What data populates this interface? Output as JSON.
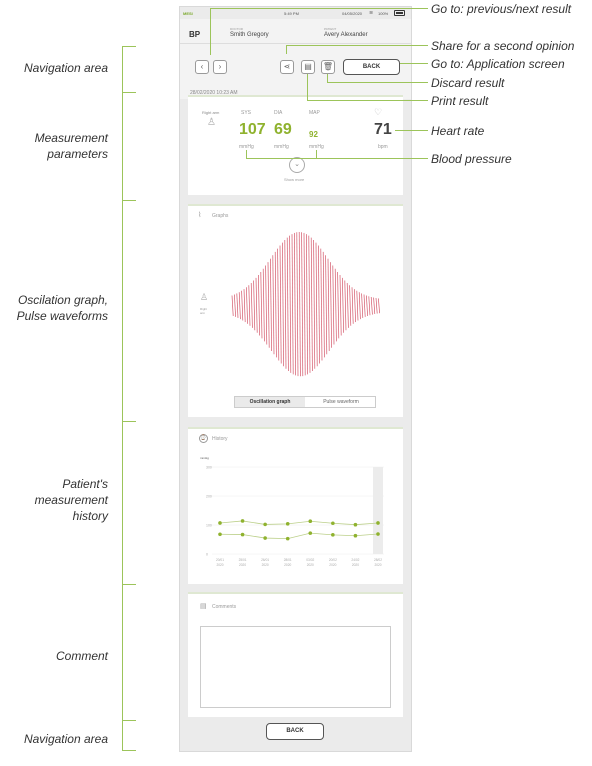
{
  "left_labels": {
    "nav_top": "Navigation area",
    "measure_1": "Measurement",
    "measure_2": "parameters",
    "osc_1": "Oscilation graph,",
    "osc_2": "Pulse waveforms",
    "hist_1": "Patient's",
    "hist_2": "measurement",
    "hist_3": "history",
    "comment": "Comment",
    "nav_bottom": "Navigation area"
  },
  "right_labels": {
    "prev_next": "Go to: previous/next result",
    "share": "Share for a second opinion",
    "app_screen": "Go to: Application screen",
    "discard": "Discard result",
    "print": "Print result",
    "heart_rate": "Heart rate",
    "blood_pressure": "Blood pressure"
  },
  "status_bar": {
    "brand": "MESI",
    "time": "5:49 PM",
    "date": "04/05/2020",
    "battery": "100%"
  },
  "header": {
    "title": "BP",
    "doctor_label": "DOCTOR",
    "doctor_name": "Smith Gregory",
    "patient_label": "PATIENT",
    "patient_name": "Avery Alexander",
    "back_label": "BACK",
    "datetime": "28/02/2020 10:23 AM"
  },
  "measurement": {
    "arm_label": "Right arm",
    "sys_label": "SYS",
    "dia_label": "DIA",
    "map_label": "MAP",
    "sys_value": "107",
    "dia_value": "69",
    "map_value": "92",
    "sys_unit": "mmHg",
    "dia_unit": "mmHg",
    "map_unit": "mmHg",
    "hr_value": "71",
    "hr_unit": "bpm",
    "show_more": "Show more"
  },
  "graphs": {
    "title": "Graphs",
    "arm_label_1": "Right",
    "arm_label_2": "arm",
    "tab_oscillation": "Oscillation graph",
    "tab_pulse": "Pulse waveform",
    "active_tab": "Oscillation graph"
  },
  "history": {
    "title": "History",
    "y_unit": "mmHg",
    "y_ticks": [
      "300",
      "200",
      "100",
      "0"
    ],
    "x_labels": [
      [
        "20/01",
        "2020"
      ],
      [
        "25/01",
        "2020"
      ],
      [
        "26/01",
        "2020"
      ],
      [
        "28/01",
        "2020"
      ],
      [
        "03/02",
        "2020"
      ],
      [
        "20/02",
        "2020"
      ],
      [
        "24/02",
        "2020"
      ],
      [
        "28/02",
        "2020"
      ]
    ],
    "chart_data": {
      "type": "line",
      "ylim": [
        0,
        300
      ],
      "series": [
        {
          "values": [
            107,
            114,
            102,
            104,
            113,
            106,
            101,
            107
          ]
        },
        {
          "values": [
            68,
            67,
            55,
            53,
            72,
            66,
            63,
            69
          ]
        }
      ],
      "highlight_index": 7,
      "color": "#8fb22e"
    }
  },
  "comments": {
    "title": "Comments"
  },
  "footer": {
    "back_label": "BACK"
  }
}
